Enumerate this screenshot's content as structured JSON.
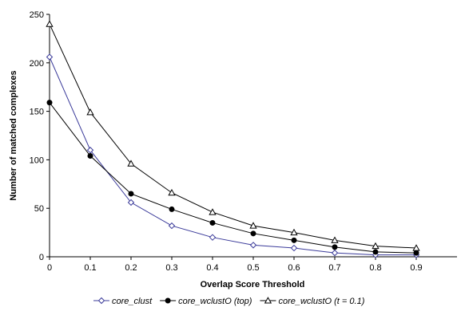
{
  "chart_data": {
    "type": "line",
    "xlabel": "Overlap Score Threshold",
    "ylabel": "Number of matched complexes",
    "xlim": [
      0,
      1.0
    ],
    "ylim": [
      0,
      250
    ],
    "x_ticks": [
      "0",
      "0.1",
      "0.2",
      "0.3",
      "0.4",
      "0.5",
      "0.6",
      "0.7",
      "0.8",
      "0.9"
    ],
    "y_ticks": [
      "0",
      "50",
      "100",
      "150",
      "200",
      "250"
    ],
    "grid": false,
    "legend_position": "bottom",
    "x": [
      0,
      0.1,
      0.2,
      0.3,
      0.4,
      0.5,
      0.6,
      0.7,
      0.8,
      0.9
    ],
    "series": [
      {
        "name": "core_clust",
        "marker": "open-diamond",
        "color": "#3b3b9a",
        "values": [
          206,
          110,
          56,
          32,
          20,
          12,
          9,
          4,
          2,
          2
        ]
      },
      {
        "name": "core_wclustO (top)",
        "marker": "filled-circle",
        "color": "#000000",
        "values": [
          159,
          104,
          65,
          49,
          35,
          24,
          17,
          10,
          5,
          4
        ]
      },
      {
        "name": "core_wclustO (t = 0.1)",
        "marker": "open-triangle",
        "color": "#000000",
        "values": [
          240,
          149,
          96,
          66,
          46,
          32,
          25,
          17,
          11,
          9
        ]
      }
    ]
  }
}
